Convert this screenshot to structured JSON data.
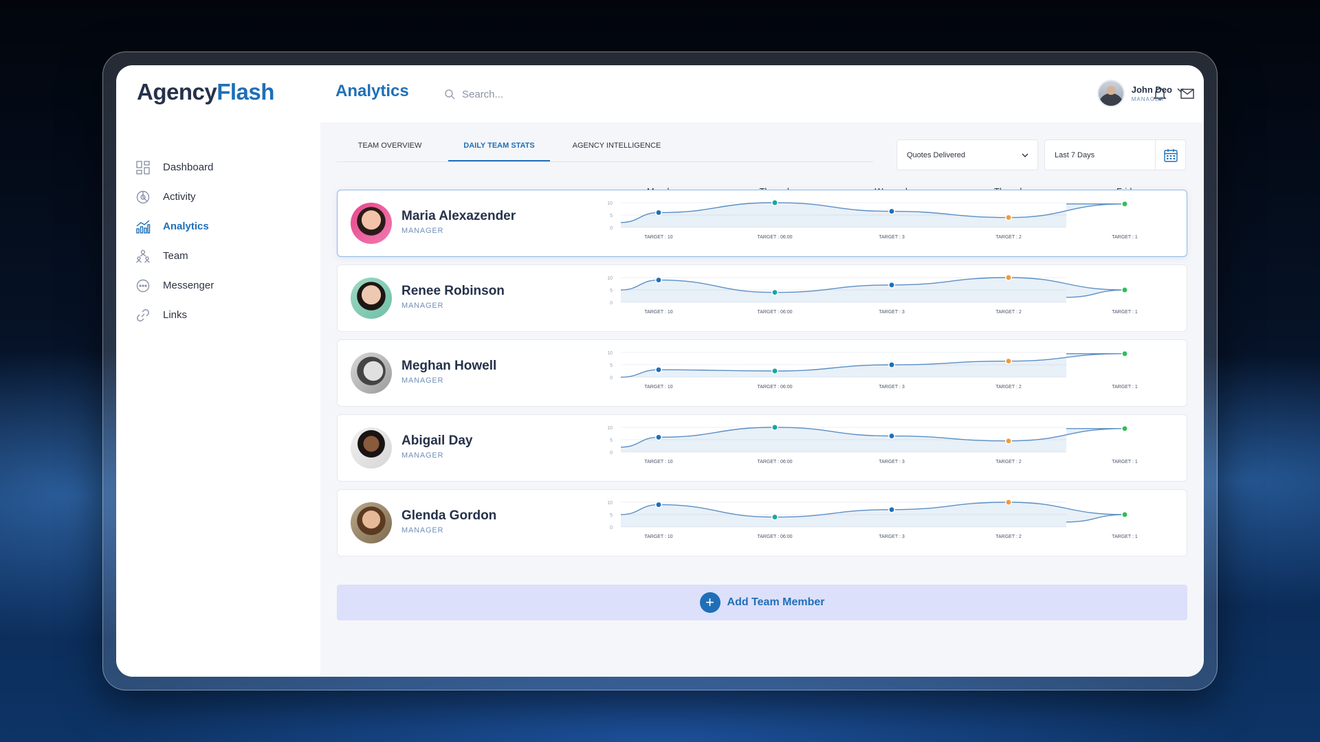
{
  "brand": {
    "part1": "Agency",
    "part2": "Flash"
  },
  "header": {
    "title": "Analytics",
    "search_placeholder": "Search...",
    "user_name": "John Deo",
    "user_role": "MANAGER"
  },
  "sidebar": {
    "items": [
      {
        "label": "Dashboard",
        "icon": "dashboard-icon"
      },
      {
        "label": "Activity",
        "icon": "activity-icon"
      },
      {
        "label": "Analytics",
        "icon": "analytics-icon",
        "active": true
      },
      {
        "label": "Team",
        "icon": "team-icon"
      },
      {
        "label": "Messenger",
        "icon": "messenger-icon"
      },
      {
        "label": "Links",
        "icon": "link-icon"
      }
    ]
  },
  "tabs": [
    {
      "label": "TEAM OVERVIEW"
    },
    {
      "label": "DAILY TEAM STATS",
      "active": true
    },
    {
      "label": "AGENCY INTELLIGENCE"
    }
  ],
  "filters": {
    "metric": "Quotes Delivered",
    "range": "Last 7 Days"
  },
  "days": [
    "Monday",
    "Thuesday",
    "Wenesday",
    "Thursday",
    "Friday"
  ],
  "targets": [
    "TARGET : 10",
    "TARGET : 06:00",
    "TARGET : 3",
    "TARGET : 2",
    "TARGET : 1"
  ],
  "y_ticks": [
    "10",
    "5",
    "0"
  ],
  "colors": {
    "accent": "#1f6fb8",
    "dot_blue": "#1f6fb8",
    "dot_teal": "#14a8a0",
    "dot_orange": "#f29a3a",
    "dot_green": "#2fbf5a"
  },
  "team": [
    {
      "name": "Maria Alexazender",
      "role": "MANAGER",
      "selected": true,
      "values": [
        6,
        10,
        6.5,
        4,
        9.5
      ]
    },
    {
      "name": "Renee Robinson",
      "role": "MANAGER",
      "values": [
        9,
        4,
        7,
        10,
        5
      ]
    },
    {
      "name": "Meghan Howell",
      "role": "MANAGER",
      "values": [
        3,
        2.5,
        5,
        6.5,
        9.5
      ]
    },
    {
      "name": "Abigail Day",
      "role": "MANAGER",
      "values": [
        6,
        10,
        6.5,
        4.5,
        9.5
      ]
    },
    {
      "name": "Glenda Gordon",
      "role": "MANAGER",
      "values": [
        9,
        4,
        7,
        10,
        5
      ]
    }
  ],
  "add_member_label": "Add Team Member"
}
